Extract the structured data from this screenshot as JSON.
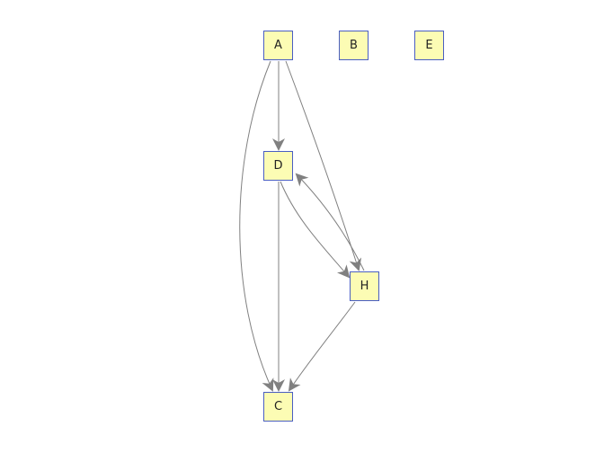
{
  "colors": {
    "background": "#ffffff",
    "node_fill": "#fcfcb4",
    "node_border": "#4a5ec2",
    "edge": "#808080"
  },
  "nodes": [
    {
      "id": "A",
      "label": "A"
    },
    {
      "id": "B",
      "label": "B"
    },
    {
      "id": "E",
      "label": "E"
    },
    {
      "id": "D",
      "label": "D"
    },
    {
      "id": "H",
      "label": "H"
    },
    {
      "id": "C",
      "label": "C"
    }
  ],
  "edges": [
    {
      "from": "A",
      "to": "D"
    },
    {
      "from": "A",
      "to": "H"
    },
    {
      "from": "A",
      "to": "C"
    },
    {
      "from": "D",
      "to": "H"
    },
    {
      "from": "H",
      "to": "D"
    },
    {
      "from": "D",
      "to": "C"
    },
    {
      "from": "H",
      "to": "C"
    }
  ]
}
